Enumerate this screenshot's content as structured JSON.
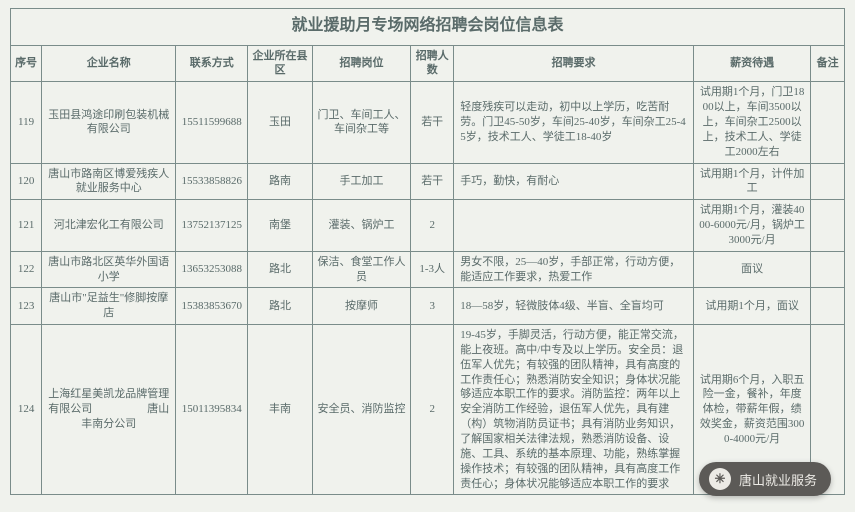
{
  "title": "就业援助月专场网络招聘会岗位信息表",
  "columns": [
    "序号",
    "企业名称",
    "联系方式",
    "企业所在县区",
    "招聘岗位",
    "招聘人数",
    "招聘要求",
    "薪资待遇",
    "备注"
  ],
  "rows": [
    {
      "n": "119",
      "co": "玉田县鸿途印刷包装机械有限公司",
      "tel": "15511599688",
      "area": "玉田",
      "job": "门卫、车间工人、车间杂工等",
      "cnt": "若干",
      "req": "轻度残疾可以走动，初中以上学历，吃苦耐劳。门卫45-50岁，车间25-40岁，车间杂工25-45岁，技术工人、学徒工18-40岁",
      "pay": "试用期1个月，门卫1800以上，车间3500以上，车间杂工2500以上，技术工人、学徒工2000左右",
      "note": ""
    },
    {
      "n": "120",
      "co": "唐山市路南区博爱残疾人就业服务中心",
      "tel": "15533858826",
      "area": "路南",
      "job": "手工加工",
      "cnt": "若干",
      "req": "手巧，勤快，有耐心",
      "pay": "试用期1个月，计件加工",
      "note": ""
    },
    {
      "n": "121",
      "co": "河北津宏化工有限公司",
      "tel": "13752137125",
      "area": "南堡",
      "job": "灌装、锅炉工",
      "cnt": "2",
      "req": "",
      "pay": "试用期1个月，灌装4000-6000元/月，锅炉工3000元/月",
      "note": ""
    },
    {
      "n": "122",
      "co": "唐山市路北区英华外国语小学",
      "tel": "13653253088",
      "area": "路北",
      "job": "保洁、食堂工作人员",
      "cnt": "1-3人",
      "req": "男女不限，25—40岁，手部正常，行动方便，能适应工作要求，热爱工作",
      "pay": "面议",
      "note": ""
    },
    {
      "n": "123",
      "co": "唐山市\"足益生\"修脚按摩店",
      "tel": "15383853670",
      "area": "路北",
      "job": "按摩师",
      "cnt": "3",
      "req": "18—58岁，轻微肢体4级、半盲、全盲均可",
      "pay": "试用期1个月，面议",
      "note": ""
    },
    {
      "n": "124",
      "co": "上海红星美凯龙品牌管理有限公司　　　　　唐山丰南分公司",
      "tel": "15011395834",
      "area": "丰南",
      "job": "安全员、消防监控",
      "cnt": "2",
      "req": "19-45岁，手脚灵活，行动方便，能正常交流，能上夜班。高中/中专及以上学历。安全员：退伍军人优先；有较强的团队精神，具有高度的工作责任心；熟悉消防安全知识；身体状况能够适应本职工作的要求。消防监控：两年以上安全消防工作经验，退伍军人优先，具有建（构）筑物消防员证书；具有消防业务知识，了解国家相关法律法规，熟悉消防设备、设施、工具、系统的基本原理、功能，熟练掌握操作技术；有较强的团队精神，具有高度工作责任心；身体状况能够适应本职工作的要求",
      "pay": "试用期6个月，入职五险一金，餐补，年度体检，带薪年假，绩效奖金，薪资范围3000-4000元/月",
      "note": ""
    }
  ],
  "widget_label": "唐山就业服务"
}
